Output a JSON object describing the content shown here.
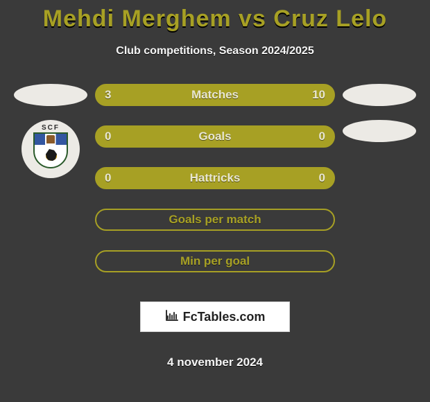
{
  "title": "Mehdi Merghem vs Cruz Lelo",
  "subtitle": "Club competitions, Season 2024/2025",
  "date": "4 november 2024",
  "watermark": {
    "icon": "chart-icon",
    "text": "FcTables.com"
  },
  "colors": {
    "background": "#3a3a3a",
    "title": "#a7a024",
    "bar_fill": "#a7a024",
    "bar_border": "#a7a024",
    "bar_empty": "#3a3a3a",
    "label_text_on_fill": "#e8e6d0",
    "label_text_on_empty": "#a7a024",
    "value_text": "#e8e6d0",
    "avatar_bg": "#eceae5"
  },
  "left_player": {
    "avatar": "ellipse-placeholder",
    "club_badge": "scf-farense"
  },
  "right_player": {
    "avatar": "ellipse-placeholder",
    "club_badge": "ellipse-placeholder"
  },
  "stats": [
    {
      "label": "Matches",
      "left_value": "3",
      "right_value": "10",
      "left_pct": 23,
      "right_pct": 77,
      "filled": true
    },
    {
      "label": "Goals",
      "left_value": "0",
      "right_value": "0",
      "left_pct": 0,
      "right_pct": 0,
      "filled": true
    },
    {
      "label": "Hattricks",
      "left_value": "0",
      "right_value": "0",
      "left_pct": 0,
      "right_pct": 0,
      "filled": true
    },
    {
      "label": "Goals per match",
      "left_value": "",
      "right_value": "",
      "left_pct": 0,
      "right_pct": 0,
      "filled": false
    },
    {
      "label": "Min per goal",
      "left_value": "",
      "right_value": "",
      "left_pct": 0,
      "right_pct": 0,
      "filled": false
    }
  ]
}
